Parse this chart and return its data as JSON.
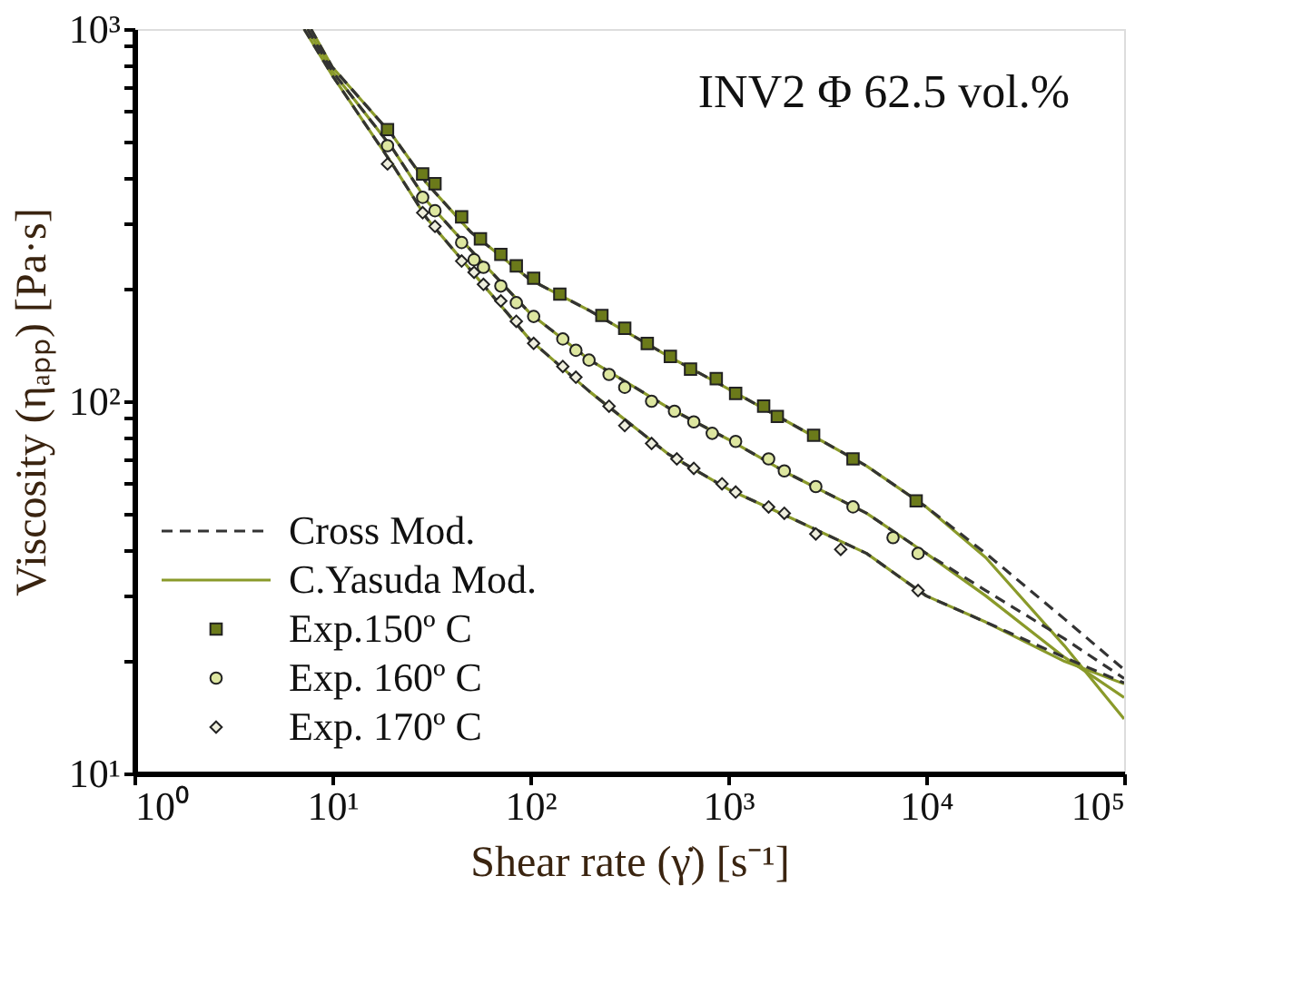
{
  "chart_data": {
    "type": "scatter",
    "xlabel": "Shear rate (γ̇) [s⁻¹]",
    "ylabel": "Viscosity (ηₐₚₚ) [Pa·s]",
    "log": "xy",
    "xlim": [
      1,
      100000
    ],
    "ylim": [
      10,
      1000
    ],
    "grid": false,
    "legend": "bottom left",
    "xticks": [
      {
        "value": 1,
        "label": "10⁰"
      },
      {
        "value": 10,
        "label": "10¹"
      },
      {
        "value": 100,
        "label": "10²"
      },
      {
        "value": 1000,
        "label": "10³"
      },
      {
        "value": 10000,
        "label": "10⁴"
      },
      {
        "value": 100000,
        "label": "10⁵"
      }
    ],
    "yticks": [
      {
        "value": 10,
        "label": "10¹"
      },
      {
        "value": 20,
        "label": null
      },
      {
        "value": 30,
        "label": null
      },
      {
        "value": 40,
        "label": null
      },
      {
        "value": 50,
        "label": null
      },
      {
        "value": 60,
        "label": null
      },
      {
        "value": 70,
        "label": null
      },
      {
        "value": 80,
        "label": null
      },
      {
        "value": 90,
        "label": null
      },
      {
        "value": 100,
        "label": "10²"
      },
      {
        "value": 200,
        "label": null
      },
      {
        "value": 300,
        "label": null
      },
      {
        "value": 400,
        "label": null
      },
      {
        "value": 500,
        "label": null
      },
      {
        "value": 600,
        "label": null
      },
      {
        "value": 700,
        "label": null
      },
      {
        "value": 800,
        "label": null
      },
      {
        "value": 900,
        "label": null
      },
      {
        "value": 1000,
        "label": "10³"
      }
    ],
    "annotations": [
      "INV2 Φ 62.5 vol.%"
    ],
    "series": [
      {
        "name": "Cross Mod.",
        "type": "line",
        "line_style": "dashed",
        "marker": "none",
        "color": "#333333",
        "x": [
          7.8,
          10,
          20,
          30,
          50,
          100,
          200,
          500,
          1000,
          2000,
          5000,
          10000,
          20000,
          50000,
          100000
        ],
        "values": [
          1000,
          790,
          520,
          385,
          285,
          212,
          175,
          132,
          108,
          88,
          67,
          52,
          39,
          26,
          19
        ]
      },
      {
        "type": "line",
        "line_style": "dashed",
        "marker": "none",
        "color": "#333333",
        "x": [
          7.5,
          10,
          20,
          30,
          50,
          100,
          200,
          500,
          1000,
          2000,
          5000,
          10000,
          20000,
          50000,
          100000
        ],
        "values": [
          1000,
          770,
          480,
          345,
          255,
          172,
          129,
          96,
          79,
          64,
          50,
          39,
          31,
          23,
          18
        ]
      },
      {
        "type": "line",
        "line_style": "dashed",
        "marker": "none",
        "color": "#333333",
        "x": [
          7.2,
          10,
          20,
          30,
          50,
          100,
          200,
          500,
          1000,
          2000,
          5000,
          10000,
          20000,
          50000,
          100000
        ],
        "values": [
          1000,
          750,
          435,
          310,
          225,
          146,
          106,
          72,
          58,
          49,
          39,
          30,
          25.5,
          20.5,
          17.5
        ]
      },
      {
        "name": "C.Yasuda Mod.",
        "type": "line",
        "line_style": "solid",
        "marker": "none",
        "color": "#8a9a2a",
        "x": [
          7.8,
          10,
          20,
          30,
          50,
          100,
          200,
          500,
          1000,
          2000,
          5000,
          10000,
          20000,
          50000,
          100000
        ],
        "values": [
          1000,
          790,
          520,
          385,
          285,
          212,
          175,
          132,
          108,
          88,
          67,
          52,
          38,
          22,
          14
        ]
      },
      {
        "type": "line",
        "line_style": "solid",
        "marker": "none",
        "color": "#8a9a2a",
        "x": [
          7.5,
          10,
          20,
          30,
          50,
          100,
          200,
          500,
          1000,
          2000,
          5000,
          10000,
          20000,
          50000,
          100000
        ],
        "values": [
          1000,
          770,
          480,
          345,
          255,
          172,
          129,
          96,
          79,
          64,
          50,
          39,
          30,
          20.5,
          16
        ]
      },
      {
        "type": "line",
        "line_style": "solid",
        "marker": "none",
        "color": "#8a9a2a",
        "x": [
          7.2,
          10,
          20,
          30,
          50,
          100,
          200,
          500,
          1000,
          2000,
          5000,
          10000,
          20000,
          50000,
          100000
        ],
        "values": [
          1000,
          750,
          435,
          310,
          225,
          146,
          106,
          72,
          58,
          49,
          39,
          30,
          25.5,
          20,
          17.4
        ]
      },
      {
        "name": "Exp.150º C",
        "marker": "square",
        "color": "#6b7a1a",
        "x": [
          19,
          28.6,
          33,
          45,
          56,
          71,
          85,
          104,
          141,
          230,
          300,
          390,
          510,
          645,
          870,
          1090,
          1510,
          1770,
          2700,
          4270,
          8900
        ],
        "values": [
          537,
          408,
          384,
          313,
          273,
          248,
          231,
          214,
          194,
          170,
          157,
          143,
          132,
          122,
          115,
          105,
          97,
          91,
          81,
          70,
          54
        ]
      },
      {
        "name": "Exp. 160º C",
        "marker": "circle",
        "color": "#dde6a0",
        "x": [
          19,
          28.6,
          33,
          45,
          52,
          58,
          71,
          85,
          104,
          146,
          170,
          198,
          250,
          300,
          410,
          535,
          670,
          830,
          1090,
          1600,
          1920,
          2770,
          4270,
          6800,
          9100
        ],
        "values": [
          486,
          353,
          325,
          267,
          240,
          229,
          204,
          184,
          169,
          147,
          137,
          129,
          118,
          109,
          100,
          94,
          88,
          82,
          78,
          70,
          65,
          59,
          52,
          43,
          39
        ]
      },
      {
        "name": "Exp. 170º C",
        "marker": "diamond",
        "color": "#eeeedd",
        "x": [
          19,
          28.6,
          33,
          45,
          52,
          58,
          71,
          85,
          104,
          146,
          170,
          250,
          300,
          410,
          550,
          670,
          930,
          1090,
          1600,
          1920,
          2770,
          3700,
          9100
        ],
        "values": [
          434,
          321,
          295,
          238,
          222,
          206,
          186,
          164,
          143,
          124,
          116,
          97,
          86,
          77,
          70,
          66,
          60,
          57,
          52,
          50,
          44,
          40,
          31
        ]
      }
    ]
  }
}
